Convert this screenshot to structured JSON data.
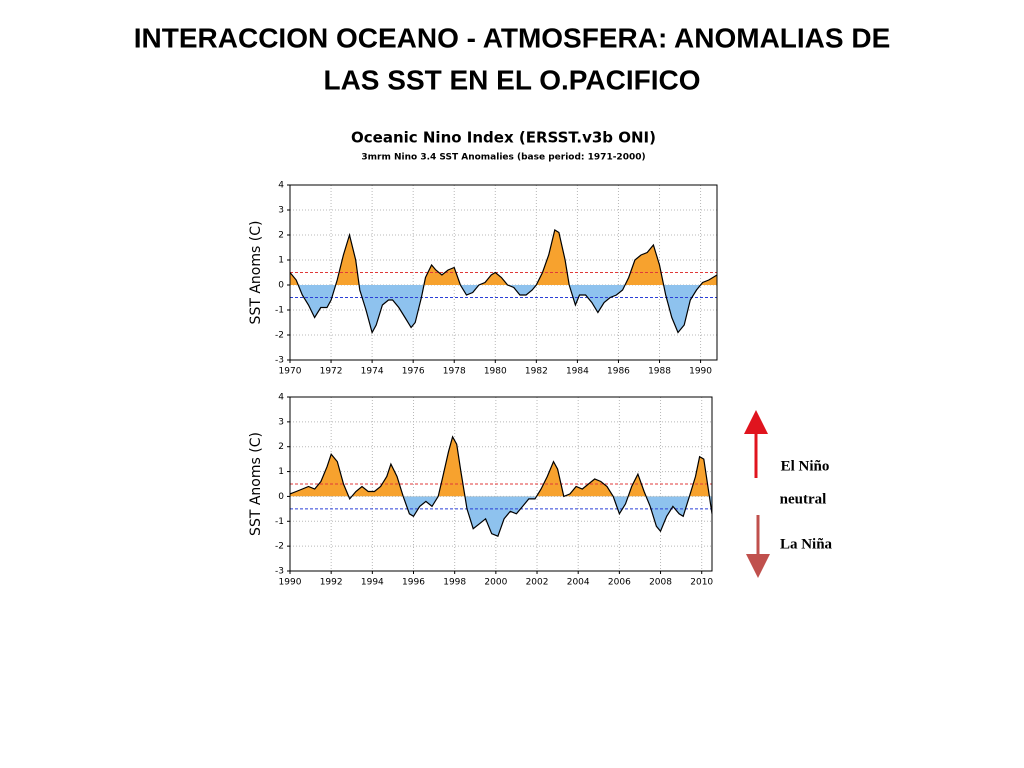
{
  "slide_title": [
    "INTERACCION OCEANO - ATMOSFERA: ANOMALIAS DE",
    "LAS SST EN EL O.PACIFICO"
  ],
  "side_labels": {
    "el_nino": "El Niño",
    "neutral": "neutral",
    "la_nina": "La Niña"
  },
  "chart_data": [
    {
      "type": "area",
      "title": "Oceanic Nino Index (ERSST.v3b ONI)",
      "subtitle": "3mrm Nino 3.4 SST Anomalies (base period: 1971-2000)",
      "y_label": "SST Anoms (C)",
      "positive_color": "#f7a22e",
      "negative_color": "#8ec2ee",
      "grid": true,
      "reference_lines": [
        {
          "value": 0.5,
          "color": "#e03a3a"
        },
        {
          "value": -0.5,
          "color": "#2a3fd6"
        }
      ],
      "xlim": [
        1970,
        1990.8
      ],
      "xticks": [
        1970,
        1972,
        1974,
        1976,
        1978,
        1980,
        1982,
        1984,
        1986,
        1988,
        1990
      ],
      "ylim": [
        -3,
        4
      ],
      "yticks": [
        -3,
        -2,
        -1,
        0,
        1,
        2,
        3,
        4
      ],
      "x": [
        1970.0,
        1970.3,
        1970.6,
        1970.9,
        1971.2,
        1971.5,
        1971.8,
        1972.0,
        1972.3,
        1972.6,
        1972.9,
        1973.2,
        1973.4,
        1973.7,
        1974.0,
        1974.2,
        1974.5,
        1974.8,
        1975.0,
        1975.3,
        1975.6,
        1975.9,
        1976.1,
        1976.4,
        1976.6,
        1976.9,
        1977.1,
        1977.4,
        1977.7,
        1978.0,
        1978.3,
        1978.6,
        1978.9,
        1979.2,
        1979.5,
        1979.8,
        1980.0,
        1980.3,
        1980.6,
        1980.9,
        1981.2,
        1981.5,
        1981.8,
        1982.0,
        1982.3,
        1982.6,
        1982.9,
        1983.1,
        1983.4,
        1983.6,
        1983.9,
        1984.1,
        1984.4,
        1984.7,
        1985.0,
        1985.3,
        1985.6,
        1985.9,
        1986.2,
        1986.5,
        1986.8,
        1987.1,
        1987.4,
        1987.7,
        1988.0,
        1988.3,
        1988.6,
        1988.9,
        1989.2,
        1989.5,
        1989.8,
        1990.1,
        1990.4,
        1990.8
      ],
      "values": [
        0.5,
        0.2,
        -0.4,
        -0.8,
        -1.3,
        -0.9,
        -0.9,
        -0.6,
        0.2,
        1.2,
        2.0,
        1.0,
        -0.2,
        -1.0,
        -1.9,
        -1.6,
        -0.8,
        -0.6,
        -0.6,
        -0.9,
        -1.3,
        -1.7,
        -1.5,
        -0.5,
        0.3,
        0.8,
        0.6,
        0.4,
        0.6,
        0.7,
        0.0,
        -0.4,
        -0.3,
        0.0,
        0.1,
        0.4,
        0.5,
        0.3,
        0.0,
        -0.1,
        -0.4,
        -0.4,
        -0.2,
        0.0,
        0.5,
        1.2,
        2.2,
        2.1,
        1.0,
        0.0,
        -0.8,
        -0.4,
        -0.4,
        -0.7,
        -1.1,
        -0.7,
        -0.5,
        -0.4,
        -0.2,
        0.3,
        1.0,
        1.2,
        1.3,
        1.6,
        0.8,
        -0.4,
        -1.3,
        -1.9,
        -1.6,
        -0.6,
        -0.2,
        0.1,
        0.2,
        0.4
      ]
    },
    {
      "type": "area",
      "y_label": "SST Anoms (C)",
      "positive_color": "#f7a22e",
      "negative_color": "#8ec2ee",
      "grid": true,
      "reference_lines": [
        {
          "value": 0.5,
          "color": "#e03a3a"
        },
        {
          "value": -0.5,
          "color": "#2a3fd6"
        }
      ],
      "xlim": [
        1990,
        2010.5
      ],
      "xticks": [
        1990,
        1992,
        1994,
        1996,
        1998,
        2000,
        2002,
        2004,
        2006,
        2008,
        2010
      ],
      "ylim": [
        -3,
        4
      ],
      "yticks": [
        -3,
        -2,
        -1,
        0,
        1,
        2,
        3,
        4
      ],
      "x": [
        1990.0,
        1990.3,
        1990.6,
        1990.9,
        1991.2,
        1991.5,
        1991.8,
        1992.0,
        1992.3,
        1992.6,
        1992.9,
        1993.2,
        1993.5,
        1993.8,
        1994.1,
        1994.4,
        1994.7,
        1994.9,
        1995.2,
        1995.5,
        1995.8,
        1996.0,
        1996.3,
        1996.6,
        1996.9,
        1997.2,
        1997.4,
        1997.7,
        1997.9,
        1998.1,
        1998.3,
        1998.6,
        1998.9,
        1999.2,
        1999.5,
        1999.8,
        2000.1,
        2000.4,
        2000.7,
        2001.0,
        2001.3,
        2001.6,
        2001.9,
        2002.2,
        2002.5,
        2002.8,
        2003.0,
        2003.3,
        2003.6,
        2003.9,
        2004.2,
        2004.5,
        2004.8,
        2005.1,
        2005.4,
        2005.7,
        2006.0,
        2006.3,
        2006.6,
        2006.9,
        2007.2,
        2007.5,
        2007.8,
        2008.0,
        2008.3,
        2008.6,
        2008.9,
        2009.1,
        2009.4,
        2009.7,
        2009.9,
        2010.1,
        2010.3,
        2010.5
      ],
      "values": [
        0.1,
        0.2,
        0.3,
        0.4,
        0.3,
        0.6,
        1.2,
        1.7,
        1.4,
        0.5,
        -0.1,
        0.2,
        0.4,
        0.2,
        0.2,
        0.4,
        0.8,
        1.3,
        0.8,
        0.0,
        -0.7,
        -0.8,
        -0.4,
        -0.2,
        -0.4,
        0.0,
        0.7,
        1.8,
        2.4,
        2.1,
        1.0,
        -0.5,
        -1.3,
        -1.1,
        -0.9,
        -1.5,
        -1.6,
        -0.9,
        -0.6,
        -0.7,
        -0.4,
        -0.1,
        -0.1,
        0.3,
        0.8,
        1.4,
        1.1,
        0.0,
        0.1,
        0.4,
        0.3,
        0.5,
        0.7,
        0.6,
        0.4,
        0.0,
        -0.7,
        -0.3,
        0.4,
        0.9,
        0.2,
        -0.4,
        -1.2,
        -1.4,
        -0.8,
        -0.4,
        -0.7,
        -0.8,
        0.0,
        0.8,
        1.6,
        1.5,
        0.4,
        -0.7
      ]
    }
  ]
}
